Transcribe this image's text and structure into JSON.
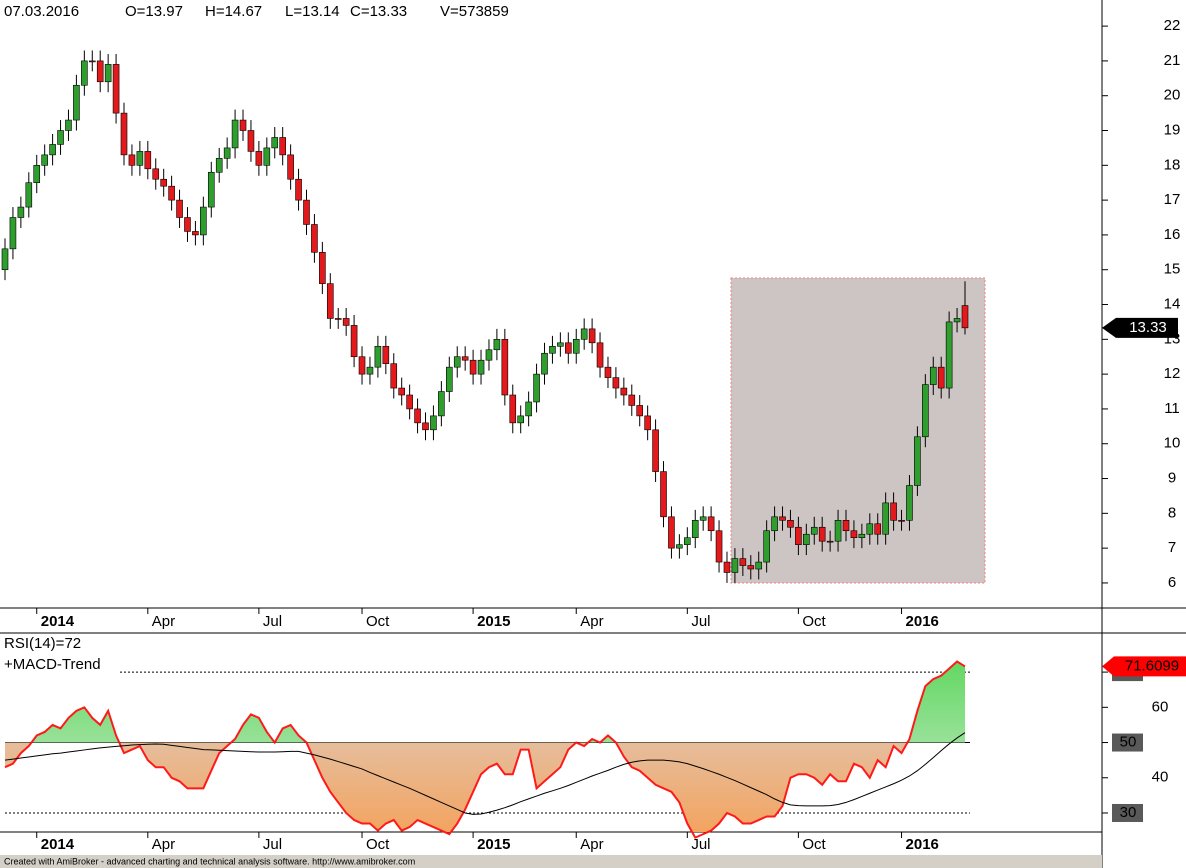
{
  "chart_data": [
    {
      "type": "candlestick",
      "date": "07.03.2016",
      "ohlcv": [
        "O=13.97",
        "H=14.67",
        "L=13.14",
        "C=13.33",
        "V=573859"
      ],
      "categories": [
        null,
        null,
        null,
        null,
        "2014",
        null,
        null,
        null,
        null,
        null,
        null,
        null,
        null,
        null,
        null,
        null,
        null,
        null,
        "Apr",
        null,
        null,
        null,
        null,
        null,
        null,
        null,
        null,
        null,
        null,
        null,
        null,
        null,
        "Jul",
        null,
        null,
        null,
        null,
        null,
        null,
        null,
        null,
        null,
        null,
        null,
        null,
        "Oct",
        null,
        null,
        null,
        null,
        null,
        null,
        null,
        null,
        null,
        null,
        null,
        null,
        null,
        "2015",
        null,
        null,
        null,
        null,
        null,
        null,
        null,
        null,
        null,
        null,
        null,
        null,
        "Apr",
        null,
        null,
        null,
        null,
        null,
        null,
        null,
        null,
        null,
        null,
        null,
        null,
        null,
        "Jul",
        null,
        null,
        null,
        null,
        null,
        null,
        null,
        null,
        null,
        null,
        null,
        null,
        null,
        "Oct",
        null,
        null,
        null,
        null,
        null,
        null,
        null,
        null,
        null,
        null,
        null,
        null,
        "2016",
        null,
        null,
        null,
        null,
        null,
        null,
        null,
        null
      ],
      "open": [
        15.0,
        15.6,
        16.5,
        16.8,
        17.5,
        18.0,
        18.3,
        18.6,
        19.0,
        19.3,
        20.3,
        21.0,
        21.0,
        20.4,
        20.9,
        19.5,
        18.3,
        18.0,
        18.4,
        17.9,
        17.6,
        17.4,
        17.0,
        16.5,
        16.1,
        16.0,
        16.8,
        17.8,
        18.2,
        18.5,
        19.3,
        19.0,
        18.4,
        18.0,
        18.5,
        18.8,
        18.3,
        17.6,
        17.0,
        16.3,
        15.5,
        14.6,
        13.6,
        13.6,
        13.4,
        12.5,
        12.0,
        12.2,
        12.8,
        12.3,
        11.6,
        11.4,
        11.0,
        10.6,
        10.4,
        10.8,
        11.5,
        12.2,
        12.5,
        12.4,
        12.0,
        12.4,
        12.7,
        13.0,
        11.4,
        10.6,
        10.8,
        11.2,
        12.0,
        12.6,
        12.8,
        12.9,
        12.6,
        13.0,
        13.3,
        12.9,
        12.2,
        11.9,
        11.6,
        11.4,
        11.1,
        10.8,
        10.4,
        9.2,
        7.9,
        7.0,
        7.1,
        7.3,
        7.8,
        7.9,
        7.5,
        6.6,
        6.3,
        6.7,
        6.5,
        6.4,
        6.6,
        7.5,
        7.9,
        7.8,
        7.6,
        7.1,
        7.4,
        7.6,
        7.2,
        7.2,
        7.8,
        7.5,
        7.3,
        7.4,
        7.7,
        7.4,
        8.3,
        7.8,
        7.8,
        8.8,
        10.2,
        11.7,
        12.2,
        11.6,
        13.5,
        13.97
      ],
      "high": [
        15.9,
        16.8,
        17.1,
        17.8,
        18.3,
        18.6,
        18.9,
        19.3,
        19.6,
        20.6,
        21.3,
        21.3,
        21.3,
        21.2,
        21.2,
        19.8,
        18.6,
        18.7,
        18.7,
        18.2,
        17.9,
        17.7,
        17.3,
        16.8,
        16.4,
        17.1,
        18.1,
        18.5,
        18.8,
        19.6,
        19.6,
        19.3,
        18.7,
        18.8,
        19.1,
        19.1,
        18.6,
        17.9,
        17.3,
        16.6,
        15.8,
        14.9,
        13.9,
        13.9,
        13.7,
        12.8,
        12.5,
        13.1,
        13.1,
        12.6,
        11.9,
        11.7,
        11.3,
        10.9,
        11.1,
        11.8,
        12.5,
        12.8,
        12.8,
        12.7,
        12.7,
        13.0,
        13.3,
        13.3,
        11.7,
        11.1,
        11.5,
        12.3,
        12.9,
        13.1,
        13.2,
        13.2,
        13.3,
        13.6,
        13.6,
        13.2,
        12.5,
        12.2,
        11.9,
        11.7,
        11.4,
        11.1,
        10.7,
        9.5,
        8.2,
        7.4,
        7.6,
        8.1,
        8.2,
        8.2,
        7.8,
        6.9,
        7.0,
        7.0,
        6.8,
        6.9,
        7.8,
        8.2,
        8.2,
        8.1,
        7.9,
        7.7,
        7.9,
        7.9,
        7.5,
        8.1,
        8.1,
        7.8,
        7.7,
        8.0,
        8.0,
        8.6,
        8.6,
        8.1,
        9.1,
        10.5,
        12.0,
        12.5,
        12.5,
        13.8,
        13.9,
        14.67
      ],
      "low": [
        14.7,
        15.3,
        16.2,
        16.5,
        17.2,
        17.7,
        18.0,
        18.3,
        18.7,
        19.0,
        20.0,
        20.7,
        20.1,
        20.1,
        19.2,
        18.0,
        17.7,
        17.7,
        17.6,
        17.3,
        17.1,
        16.7,
        16.2,
        15.8,
        15.7,
        15.7,
        16.5,
        17.5,
        17.9,
        18.2,
        18.7,
        18.1,
        17.7,
        17.7,
        18.2,
        18.0,
        17.3,
        16.7,
        16.0,
        15.2,
        14.3,
        13.3,
        13.3,
        13.1,
        12.2,
        11.7,
        11.7,
        11.9,
        12.0,
        11.3,
        11.1,
        10.7,
        10.3,
        10.1,
        10.1,
        10.5,
        11.2,
        11.9,
        12.1,
        11.7,
        11.7,
        12.1,
        12.4,
        11.1,
        10.3,
        10.3,
        10.5,
        10.9,
        11.7,
        12.3,
        12.5,
        12.3,
        12.3,
        12.7,
        12.6,
        11.9,
        11.6,
        11.3,
        11.1,
        10.8,
        10.5,
        10.1,
        8.9,
        7.6,
        6.7,
        6.7,
        6.8,
        7.0,
        7.5,
        7.2,
        6.3,
        6.0,
        6.0,
        6.2,
        6.1,
        6.1,
        6.3,
        7.2,
        7.5,
        7.3,
        6.8,
        6.8,
        7.1,
        6.9,
        6.9,
        6.9,
        7.2,
        7.0,
        7.0,
        7.1,
        7.1,
        7.1,
        7.5,
        7.5,
        7.5,
        8.5,
        9.9,
        11.4,
        11.3,
        11.3,
        13.2,
        13.14
      ],
      "close": [
        15.6,
        16.5,
        16.8,
        17.5,
        18.0,
        18.3,
        18.6,
        19.0,
        19.3,
        20.3,
        21.0,
        21.0,
        20.4,
        20.9,
        19.5,
        18.3,
        18.0,
        18.4,
        17.9,
        17.6,
        17.4,
        17.0,
        16.5,
        16.1,
        16.0,
        16.8,
        17.8,
        18.2,
        18.5,
        19.3,
        19.0,
        18.4,
        18.0,
        18.5,
        18.8,
        18.3,
        17.6,
        17.0,
        16.3,
        15.5,
        14.6,
        13.6,
        13.6,
        13.4,
        12.5,
        12.0,
        12.2,
        12.8,
        12.3,
        11.6,
        11.4,
        11.0,
        10.6,
        10.4,
        10.8,
        11.5,
        12.2,
        12.5,
        12.4,
        12.0,
        12.4,
        12.7,
        13.0,
        11.4,
        10.6,
        10.8,
        11.2,
        12.0,
        12.6,
        12.8,
        12.9,
        12.6,
        13.0,
        13.3,
        12.9,
        12.2,
        11.9,
        11.6,
        11.4,
        11.1,
        10.8,
        10.4,
        9.2,
        7.9,
        7.0,
        7.1,
        7.3,
        7.8,
        7.9,
        7.5,
        6.6,
        6.3,
        6.7,
        6.5,
        6.4,
        6.6,
        7.5,
        7.9,
        7.8,
        7.6,
        7.1,
        7.4,
        7.6,
        7.2,
        7.2,
        7.8,
        7.5,
        7.3,
        7.4,
        7.7,
        7.4,
        8.3,
        7.8,
        7.8,
        8.8,
        10.2,
        11.7,
        12.2,
        11.6,
        13.5,
        13.6,
        13.33
      ],
      "up_color": "#2f9e2f",
      "down_color": "#e3191c",
      "ylim": [
        5.28,
        22.75
      ],
      "yticks": [
        6,
        7,
        8,
        9,
        10,
        11,
        12,
        13,
        14,
        15,
        16,
        17,
        18,
        19,
        20,
        21,
        22
      ]
    },
    {
      "type": "line",
      "categories": [
        null,
        null,
        null,
        null,
        "2014",
        null,
        null,
        null,
        null,
        null,
        null,
        null,
        null,
        null,
        null,
        null,
        null,
        null,
        "Apr",
        null,
        null,
        null,
        null,
        null,
        null,
        null,
        null,
        null,
        null,
        null,
        null,
        null,
        "Jul",
        null,
        null,
        null,
        null,
        null,
        null,
        null,
        null,
        null,
        null,
        null,
        null,
        "Oct",
        null,
        null,
        null,
        null,
        null,
        null,
        null,
        null,
        null,
        null,
        null,
        null,
        null,
        "2015",
        null,
        null,
        null,
        null,
        null,
        null,
        null,
        null,
        null,
        null,
        null,
        null,
        "Apr",
        null,
        null,
        null,
        null,
        null,
        null,
        null,
        null,
        null,
        null,
        null,
        null,
        null,
        "Jul",
        null,
        null,
        null,
        null,
        null,
        null,
        null,
        null,
        null,
        null,
        null,
        null,
        null,
        "Oct",
        null,
        null,
        null,
        null,
        null,
        null,
        null,
        null,
        null,
        null,
        null,
        null,
        "2016",
        null,
        null,
        null,
        null,
        null,
        null,
        null,
        null
      ],
      "series": [
        {
          "name": "RSI(14)=72",
          "color": "#ff1a1a",
          "values": [
            43,
            44,
            47,
            49,
            52,
            53,
            55,
            54,
            57,
            59,
            60,
            57,
            55,
            59,
            52,
            47,
            48,
            49,
            45,
            43,
            43,
            40,
            39,
            37,
            37,
            37,
            42,
            47,
            49,
            51,
            55,
            58,
            57,
            53,
            50,
            54,
            55,
            52,
            50,
            45,
            40,
            36,
            33,
            30,
            28,
            27,
            27,
            25,
            27,
            28,
            25,
            26,
            28,
            27,
            26,
            25,
            24,
            27,
            31,
            36,
            41,
            43,
            44,
            41,
            41,
            48,
            48,
            37,
            39,
            41,
            43,
            48,
            50,
            49,
            51,
            50,
            52,
            50,
            46,
            43,
            42,
            40,
            38,
            37,
            36,
            33,
            27,
            23,
            24,
            25,
            27,
            30,
            29,
            27,
            27,
            28,
            29,
            29,
            32,
            40,
            41,
            41,
            40,
            38,
            41,
            39,
            39,
            44,
            43,
            40,
            45,
            43,
            49,
            47,
            51,
            59,
            66,
            68,
            69,
            71,
            73,
            71.6099
          ]
        },
        {
          "name": "+MACD-Trend",
          "color": "#000000",
          "values": [
            45,
            45.3,
            45.6,
            45.9,
            46.2,
            46.5,
            46.8,
            47,
            47.3,
            47.6,
            47.9,
            48.2,
            48.5,
            48.7,
            48.9,
            49.1,
            49.3,
            49.4,
            49.5,
            49.6,
            49.5,
            49.2,
            48.9,
            48.6,
            48.3,
            48.0,
            47.9,
            47.8,
            47.7,
            47.6,
            47.5,
            47.4,
            47.3,
            47.3,
            47.3,
            47.4,
            47.5,
            47.5,
            47,
            46.5,
            45.9,
            45.3,
            44.6,
            43.9,
            43.2,
            42.5,
            41.5,
            40.6,
            39.7,
            38.8,
            37.9,
            37,
            36,
            35,
            34,
            33,
            32,
            31,
            30,
            29.6,
            29.7,
            30.2,
            30.8,
            31.5,
            32.3,
            33.2,
            34,
            34.8,
            35.6,
            36.3,
            37,
            37.8,
            38.7,
            39.6,
            40.5,
            41.3,
            42.1,
            43,
            43.8,
            44.4,
            44.8,
            45,
            45,
            45,
            44.8,
            44.5,
            44,
            43.3,
            42.6,
            41.8,
            41,
            40.1,
            39.2,
            38.2,
            37.2,
            36.2,
            35.2,
            34,
            33,
            32.3,
            32.1,
            32,
            32,
            32,
            32.1,
            32.4,
            33,
            33.8,
            34.7,
            35.6,
            36.5,
            37.4,
            38.3,
            39.3,
            40.5,
            42,
            43.8,
            45.7,
            47.7,
            49.6,
            51.3,
            52.8
          ]
        }
      ],
      "levels": [
        30,
        50,
        70
      ],
      "ylim": [
        24.6,
        81.1
      ],
      "yticks": [
        30,
        40,
        50,
        60,
        70
      ]
    }
  ],
  "footer": "Created with AmiBroker - advanced charting and technical analysis software. http://www.amibroker.com"
}
